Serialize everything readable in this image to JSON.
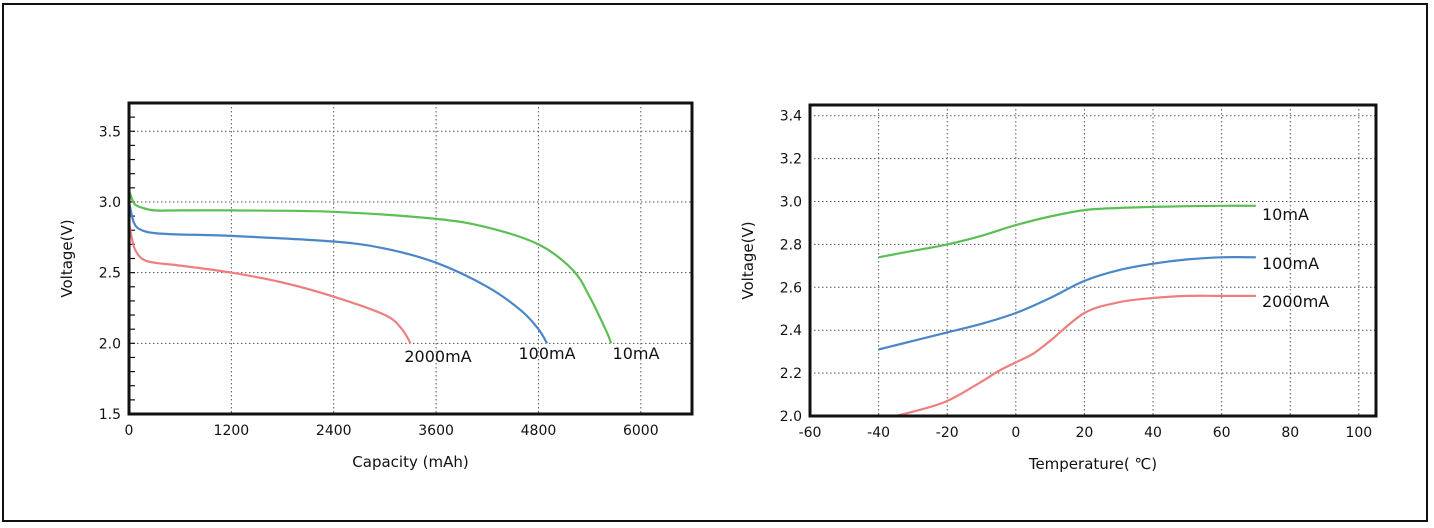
{
  "chart_data": [
    {
      "type": "line",
      "xlabel": "Capacity (mAh)",
      "ylabel": "Voltage(V)",
      "xlim": [
        0,
        6600
      ],
      "ylim": [
        1.5,
        3.7
      ],
      "xticks": [
        0,
        1200,
        2400,
        3600,
        4800,
        6000
      ],
      "xtick_labels": [
        "0",
        "1200",
        "2400",
        "3600",
        "4800",
        "6000"
      ],
      "yticks": [
        1.5,
        2.0,
        2.5,
        3.0,
        3.5
      ],
      "ytick_labels": [
        "1.5",
        "2.0",
        "2.5",
        "3.0",
        "3.5"
      ],
      "grid": true,
      "series": [
        {
          "name": "10mA",
          "color": "#5cbf54",
          "x": [
            0,
            60,
            150,
            300,
            600,
            1200,
            2400,
            3600,
            4200,
            4800,
            5200,
            5400,
            5600,
            5650
          ],
          "y": [
            3.08,
            2.99,
            2.96,
            2.94,
            2.94,
            2.94,
            2.93,
            2.88,
            2.82,
            2.7,
            2.52,
            2.33,
            2.08,
            2.0
          ]
        },
        {
          "name": "100mA",
          "color": "#4a87c8",
          "x": [
            0,
            60,
            150,
            300,
            600,
            1200,
            2400,
            3000,
            3600,
            4200,
            4600,
            4800,
            4900
          ],
          "y": [
            3.0,
            2.85,
            2.8,
            2.78,
            2.77,
            2.76,
            2.72,
            2.67,
            2.57,
            2.4,
            2.23,
            2.1,
            2.0
          ]
        },
        {
          "name": "2000mA",
          "color": "#ee7f7f",
          "x": [
            0,
            60,
            150,
            300,
            600,
            1200,
            1800,
            2400,
            3000,
            3200,
            3300
          ],
          "y": [
            2.85,
            2.68,
            2.6,
            2.57,
            2.55,
            2.5,
            2.43,
            2.33,
            2.2,
            2.1,
            2.0
          ]
        }
      ],
      "annotations": [
        "2000mA",
        "100mA",
        "10mA"
      ]
    },
    {
      "type": "line",
      "xlabel": "Temperature( ℃)",
      "ylabel": "Voltage(V)",
      "xlim": [
        -60,
        105
      ],
      "ylim": [
        2.0,
        3.45
      ],
      "xticks": [
        -60,
        -40,
        -20,
        0,
        20,
        40,
        60,
        80,
        100
      ],
      "xtick_labels": [
        "-60",
        "-40",
        "-20",
        "0",
        "20",
        "40",
        "60",
        "80",
        "100"
      ],
      "yticks": [
        2.0,
        2.2,
        2.4,
        2.6,
        2.8,
        3.0,
        3.2,
        3.4
      ],
      "ytick_labels": [
        "2.0",
        "2.2",
        "2.4",
        "2.6",
        "2.8",
        "3.0",
        "3.2",
        "3.4"
      ],
      "grid": true,
      "series": [
        {
          "name": "10mA",
          "color": "#5cbf54",
          "x": [
            -40,
            -30,
            -20,
            -10,
            0,
            10,
            20,
            30,
            40,
            50,
            60,
            70
          ],
          "y": [
            2.74,
            2.77,
            2.8,
            2.84,
            2.89,
            2.93,
            2.96,
            2.97,
            2.975,
            2.978,
            2.98,
            2.98
          ]
        },
        {
          "name": "100mA",
          "color": "#4a87c8",
          "x": [
            -40,
            -30,
            -20,
            -10,
            0,
            10,
            20,
            30,
            40,
            50,
            60,
            70
          ],
          "y": [
            2.31,
            2.35,
            2.39,
            2.43,
            2.48,
            2.55,
            2.63,
            2.68,
            2.71,
            2.73,
            2.74,
            2.74
          ]
        },
        {
          "name": "2000mA",
          "color": "#ee7f7f",
          "x": [
            -38,
            -30,
            -20,
            -10,
            -5,
            0,
            5,
            10,
            20,
            30,
            40,
            50,
            60,
            70
          ],
          "y": [
            1.99,
            2.02,
            2.07,
            2.16,
            2.21,
            2.25,
            2.29,
            2.35,
            2.48,
            2.53,
            2.55,
            2.56,
            2.56,
            2.56
          ]
        }
      ],
      "annotations": [
        "10mA",
        "100mA",
        "2000mA"
      ]
    }
  ]
}
